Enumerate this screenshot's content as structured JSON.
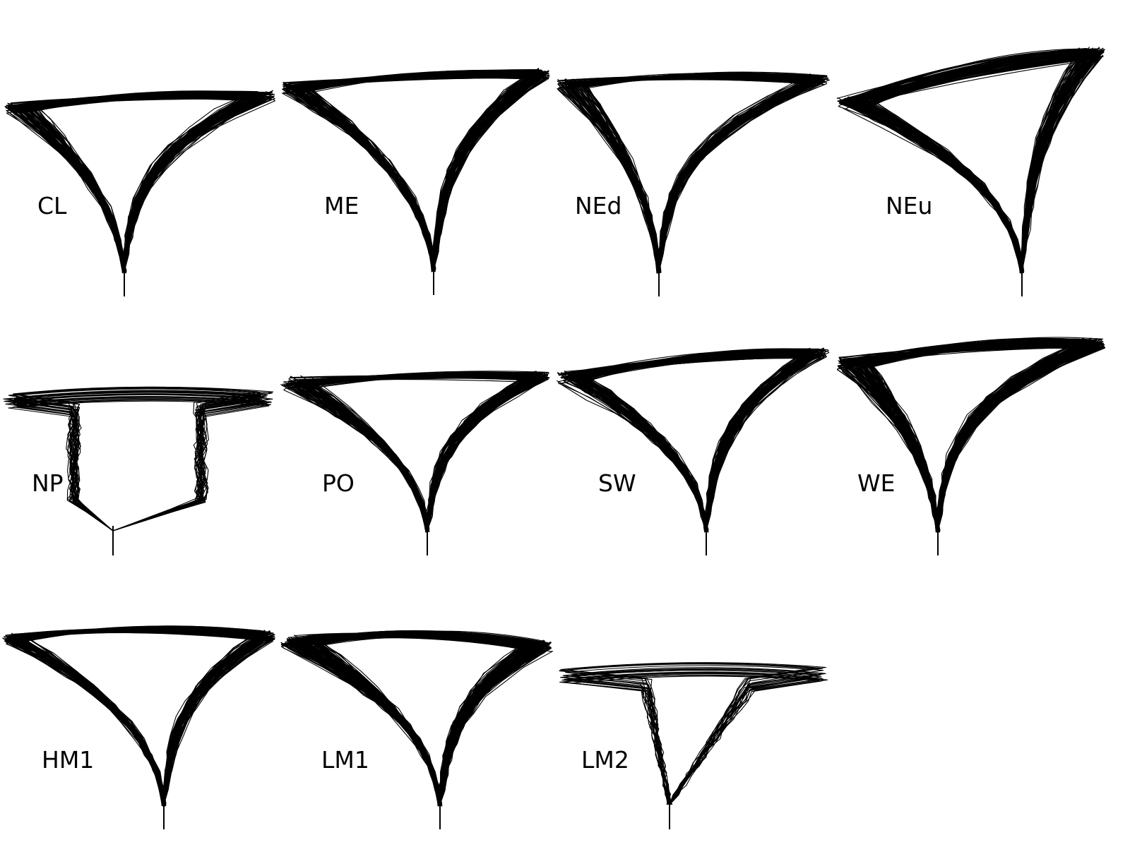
{
  "figure": {
    "line_color": "#000000",
    "background": "#ffffff",
    "panels": [
      {
        "label": "CL",
        "shape": "funnel"
      },
      {
        "label": "ME",
        "shape": "funnel"
      },
      {
        "label": "NEd",
        "shape": "funnel"
      },
      {
        "label": "NEu",
        "shape": "funnel"
      },
      {
        "label": "NP",
        "shape": "bowl"
      },
      {
        "label": "PO",
        "shape": "funnel"
      },
      {
        "label": "SW",
        "shape": "funnel"
      },
      {
        "label": "WE",
        "shape": "funnel"
      },
      {
        "label": "HM1",
        "shape": "funnel"
      },
      {
        "label": "LM1",
        "shape": "funnel"
      },
      {
        "label": "LM2",
        "shape": "bowl"
      }
    ]
  }
}
